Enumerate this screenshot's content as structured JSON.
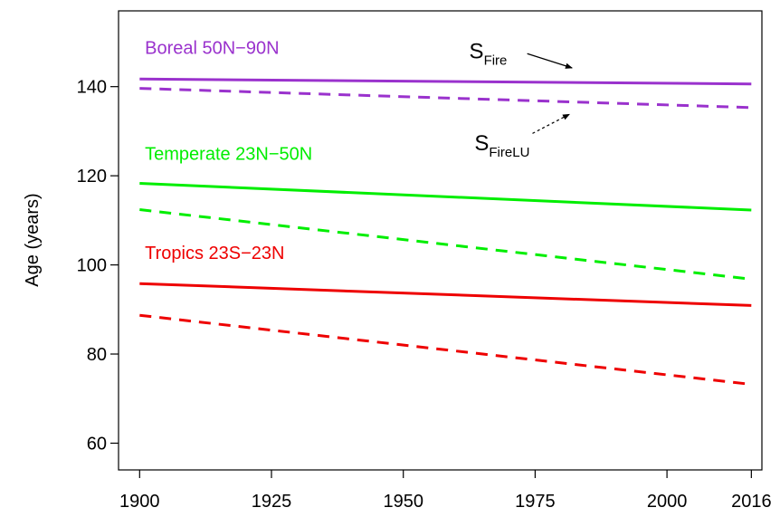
{
  "chart_data": {
    "type": "line",
    "title": "",
    "xlabel": "",
    "ylabel": "Age (years)",
    "xlim": [
      1896,
      2018
    ],
    "ylim": [
      54,
      157
    ],
    "x_ticks": [
      1900,
      1925,
      1950,
      1975,
      2000,
      2016
    ],
    "y_ticks": [
      60,
      80,
      100,
      120,
      140
    ],
    "grid": false,
    "legend": "none",
    "series": [
      {
        "region": "boreal",
        "style": "solid",
        "color": "#9a32cd",
        "x": [
          1900,
          2016
        ],
        "y": [
          141.7,
          140.6
        ]
      },
      {
        "region": "boreal",
        "style": "dashed",
        "color": "#9a32cd",
        "x": [
          1900,
          2016
        ],
        "y": [
          139.6,
          135.3
        ]
      },
      {
        "region": "temperate",
        "style": "solid",
        "color": "#00ee00",
        "x": [
          1900,
          2016
        ],
        "y": [
          118.3,
          112.3
        ]
      },
      {
        "region": "temperate",
        "style": "dashed",
        "color": "#00ee00",
        "x": [
          1900,
          2016
        ],
        "y": [
          112.4,
          96.8
        ]
      },
      {
        "region": "tropics",
        "style": "solid",
        "color": "#ee0000",
        "x": [
          1900,
          2016
        ],
        "y": [
          95.8,
          90.9
        ]
      },
      {
        "region": "tropics",
        "style": "dashed",
        "color": "#ee0000",
        "x": [
          1900,
          2016
        ],
        "y": [
          88.7,
          73.2
        ]
      }
    ],
    "region_labels": [
      {
        "id": "boreal",
        "text": "Boreal 50N−90N",
        "color": "#9a32cd",
        "x": 1901,
        "y": 147.3
      },
      {
        "id": "temperate",
        "text": "Temperate 23N−50N",
        "color": "#00ee00",
        "x": 1901,
        "y": 123.6
      },
      {
        "id": "tropics",
        "text": "Tropics 23S−23N",
        "color": "#ee0000",
        "x": 1901,
        "y": 101.3
      }
    ],
    "annotations": [
      {
        "id": "sfire",
        "main": "S",
        "sub": "Fire",
        "style": "solid",
        "x": 1962.5,
        "y": 146.3,
        "arrow_from": [
          1973.5,
          147.4
        ],
        "arrow_to": [
          1982,
          144.2
        ]
      },
      {
        "id": "sfirelu",
        "main": "S",
        "sub": "FireLU",
        "style": "dashed",
        "x": 1963.5,
        "y": 125.7,
        "arrow_from": [
          1974.5,
          129.5
        ],
        "arrow_to": [
          1981.5,
          133.8
        ]
      }
    ]
  }
}
